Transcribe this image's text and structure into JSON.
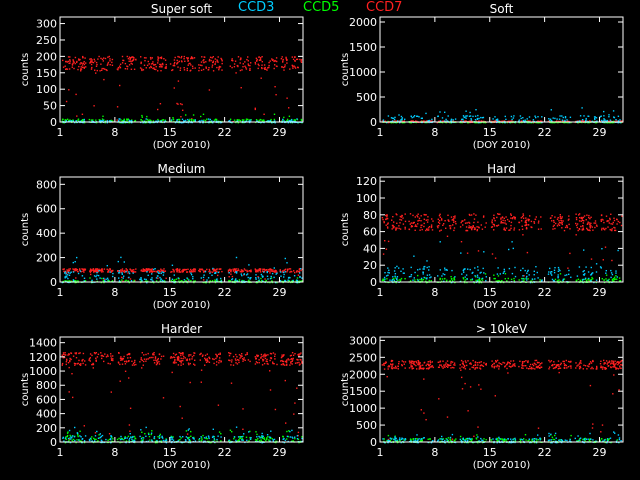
{
  "legend": [
    {
      "label": "CCD3",
      "color": "#00ccff"
    },
    {
      "label": "CCD5",
      "color": "#00ff00"
    },
    {
      "label": "CCD7",
      "color": "#ff2020"
    }
  ],
  "chart_data": [
    {
      "type": "scatter",
      "title": "Super soft",
      "xlabel": "(DOY 2010)",
      "ylabel": "counts",
      "xlim": [
        1,
        32
      ],
      "ylim": [
        0,
        320
      ],
      "xticks": [
        1,
        8,
        15,
        22,
        29
      ],
      "yticks": [
        0,
        50,
        100,
        150,
        200,
        250,
        300
      ],
      "series": [
        {
          "name": "CCD3",
          "color": "#00ccff",
          "level": 2,
          "spread": 4
        },
        {
          "name": "CCD5",
          "color": "#00ff00",
          "level": 5,
          "spread": 6
        },
        {
          "name": "CCD7",
          "color": "#ff2020",
          "level": 180,
          "spread": 22
        }
      ]
    },
    {
      "type": "scatter",
      "title": "Soft",
      "xlabel": "(DOY 2010)",
      "ylabel": "counts",
      "xlim": [
        1,
        32
      ],
      "ylim": [
        0,
        2100
      ],
      "xticks": [
        1,
        8,
        15,
        22,
        29
      ],
      "yticks": [
        0,
        500,
        1000,
        1500,
        2000
      ],
      "series": [
        {
          "name": "CCD3",
          "color": "#00ccff",
          "level": 60,
          "spread": 80
        },
        {
          "name": "CCD5",
          "color": "#00ff00",
          "level": 5,
          "spread": 10
        },
        {
          "name": "CCD7",
          "color": "#ff2020",
          "level": 20,
          "spread": 15
        }
      ]
    },
    {
      "type": "scatter",
      "title": "Medium",
      "xlabel": "(DOY 2010)",
      "ylabel": "counts",
      "xlim": [
        1,
        32
      ],
      "ylim": [
        0,
        860
      ],
      "xticks": [
        1,
        8,
        15,
        22,
        29
      ],
      "yticks": [
        0,
        200,
        400,
        600,
        800
      ],
      "series": [
        {
          "name": "CCD3",
          "color": "#00ccff",
          "level": 40,
          "spread": 50
        },
        {
          "name": "CCD5",
          "color": "#00ff00",
          "level": 8,
          "spread": 10
        },
        {
          "name": "CCD7",
          "color": "#ff2020",
          "level": 100,
          "spread": 14
        }
      ]
    },
    {
      "type": "scatter",
      "title": "Hard",
      "xlabel": "(DOY 2010)",
      "ylabel": "counts",
      "xlim": [
        1,
        32
      ],
      "ylim": [
        0,
        125
      ],
      "xticks": [
        1,
        8,
        15,
        22,
        29
      ],
      "yticks": [
        0,
        20,
        40,
        60,
        80,
        100,
        120
      ],
      "series": [
        {
          "name": "CCD3",
          "color": "#00ccff",
          "level": 10,
          "spread": 10
        },
        {
          "name": "CCD5",
          "color": "#00ff00",
          "level": 2,
          "spread": 3
        },
        {
          "name": "CCD7",
          "color": "#ff2020",
          "level": 72,
          "spread": 10
        }
      ]
    },
    {
      "type": "scatter",
      "title": "Harder",
      "xlabel": "(DOY 2010)",
      "ylabel": "counts",
      "xlim": [
        1,
        32
      ],
      "ylim": [
        0,
        1480
      ],
      "xticks": [
        1,
        8,
        15,
        22,
        29
      ],
      "yticks": [
        0,
        200,
        400,
        600,
        800,
        1000,
        1200,
        1400
      ],
      "series": [
        {
          "name": "CCD3",
          "color": "#00ccff",
          "level": 40,
          "spread": 60
        },
        {
          "name": "CCD5",
          "color": "#00ff00",
          "level": 30,
          "spread": 60
        },
        {
          "name": "CCD7",
          "color": "#ff2020",
          "level": 1180,
          "spread": 90
        }
      ]
    },
    {
      "type": "scatter",
      "title": "> 10keV",
      "xlabel": "(DOY 2010)",
      "ylabel": "counts",
      "xlim": [
        1,
        32
      ],
      "ylim": [
        0,
        3100
      ],
      "xticks": [
        1,
        8,
        15,
        22,
        29
      ],
      "yticks": [
        0,
        500,
        1000,
        1500,
        2000,
        2500,
        3000
      ],
      "series": [
        {
          "name": "CCD3",
          "color": "#00ccff",
          "level": 60,
          "spread": 80
        },
        {
          "name": "CCD5",
          "color": "#00ff00",
          "level": 40,
          "spread": 80
        },
        {
          "name": "CCD7",
          "color": "#ff2020",
          "level": 2300,
          "spread": 130
        }
      ]
    }
  ]
}
